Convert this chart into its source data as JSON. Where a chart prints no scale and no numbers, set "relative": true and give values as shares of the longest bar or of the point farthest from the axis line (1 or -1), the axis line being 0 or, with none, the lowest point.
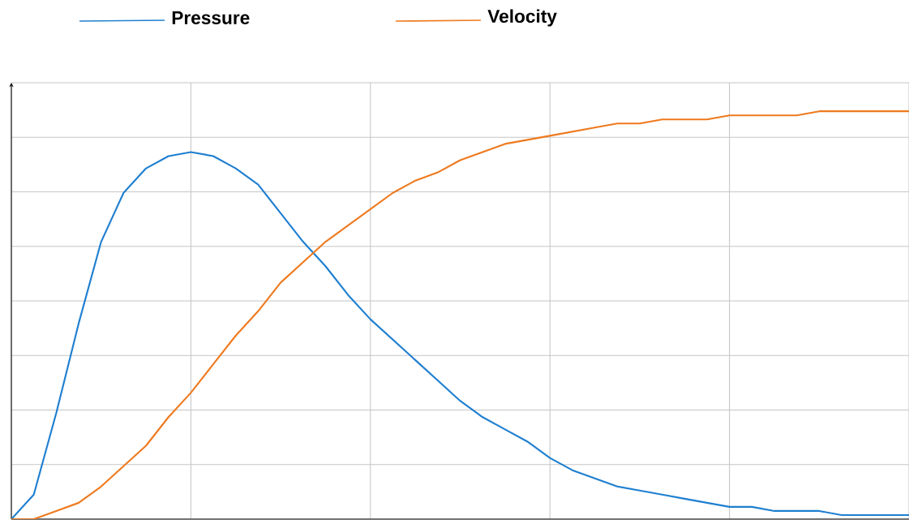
{
  "chart_data": {
    "type": "line",
    "relative": true,
    "grid": true,
    "legend": "top",
    "categories": [
      null,
      null,
      null,
      null,
      null,
      null,
      null,
      null,
      null,
      null,
      null,
      null,
      null,
      null,
      null,
      null,
      null,
      null,
      null,
      null,
      null,
      null,
      null,
      null,
      null,
      null,
      null,
      null,
      null,
      null,
      null,
      null,
      null,
      null,
      null,
      null,
      null,
      null,
      null,
      null,
      null
    ],
    "series": [
      {
        "name": "Pressure",
        "color": "#1f7fd0",
        "values": [
          0,
          0.06,
          0.26,
          0.48,
          0.68,
          0.8,
          0.86,
          0.89,
          0.9,
          0.89,
          0.86,
          0.82,
          0.75,
          0.68,
          0.62,
          0.55,
          0.49,
          0.44,
          0.39,
          0.34,
          0.29,
          0.25,
          0.22,
          0.19,
          0.15,
          0.12,
          0.1,
          0.08,
          0.07,
          0.06,
          0.05,
          0.04,
          0.03,
          0.03,
          0.02,
          0.02,
          0.02,
          0.01,
          0.01,
          0.01,
          0.01
        ]
      },
      {
        "name": "Velocity",
        "color": "#ee7a1f",
        "values": [
          0,
          0,
          0.02,
          0.04,
          0.08,
          0.13,
          0.18,
          0.25,
          0.31,
          0.38,
          0.45,
          0.51,
          0.58,
          0.63,
          0.68,
          0.72,
          0.76,
          0.8,
          0.83,
          0.85,
          0.88,
          0.9,
          0.92,
          0.93,
          0.94,
          0.95,
          0.96,
          0.97,
          0.97,
          0.98,
          0.98,
          0.98,
          0.99,
          0.99,
          0.99,
          0.99,
          1,
          1,
          1,
          1,
          1
        ]
      }
    ]
  }
}
